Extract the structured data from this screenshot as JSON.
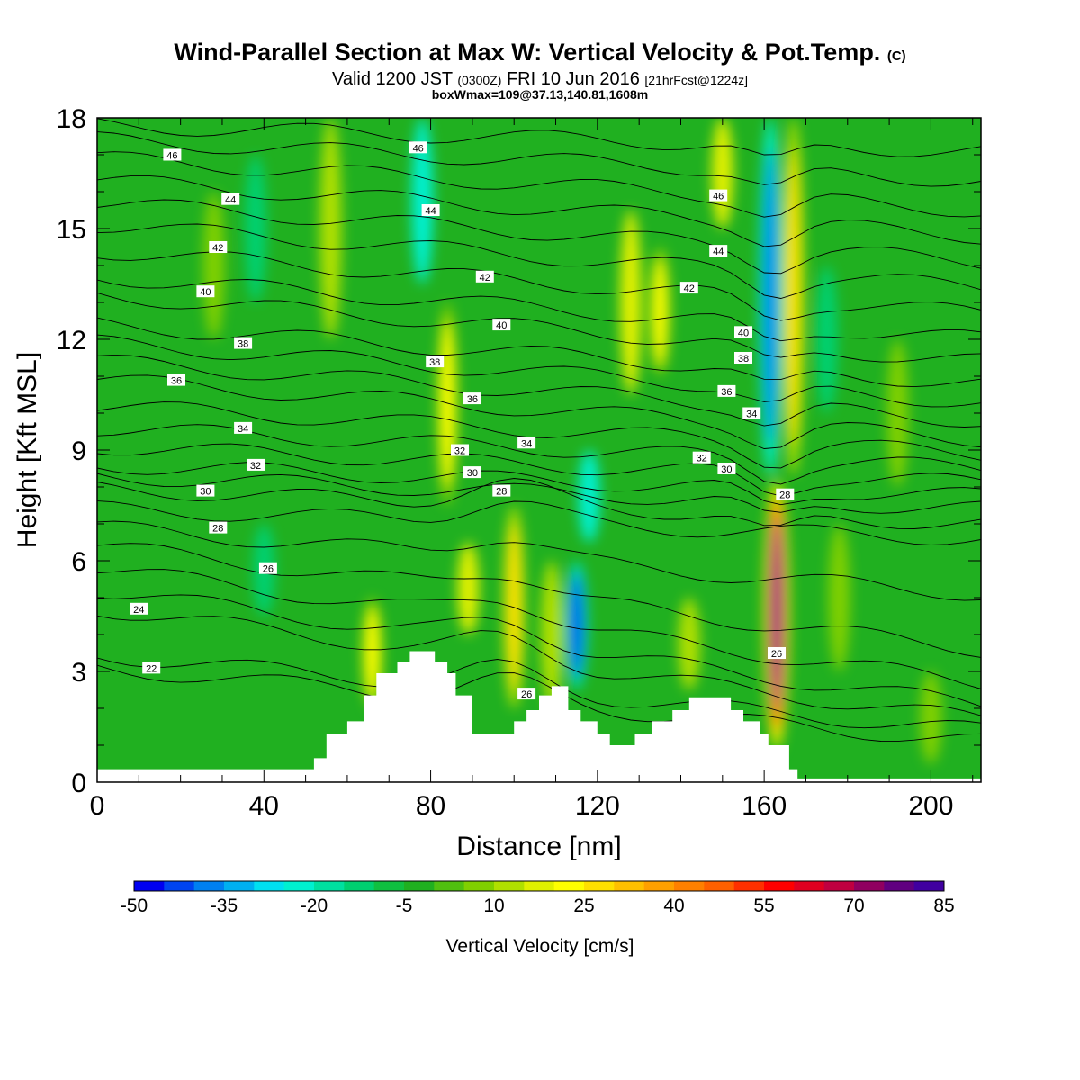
{
  "title": {
    "main": "Wind-Parallel Section at Max W: Vertical Velocity & Pot.Temp.",
    "main_mark": "(C)",
    "line2_a": "Valid 1200 JST",
    "line2_b": "(0300Z)",
    "line2_c": "FRI 10 Jun 2016",
    "line2_d": "[21hrFcst@1224z]",
    "line3": "boxWmax=109@37.13,140.81,1608m"
  },
  "chart_data": {
    "type": "heatmap",
    "xlabel": "Distance [nm]",
    "ylabel": "Height [Kft MSL]",
    "xlim": [
      0,
      212
    ],
    "ylim": [
      0,
      18
    ],
    "x_ticks": [
      0,
      40,
      80,
      120,
      160,
      200
    ],
    "y_ticks": [
      0,
      3,
      6,
      9,
      12,
      15,
      18
    ],
    "colorbar": {
      "label": "Vertical Velocity [cm/s]",
      "tick_labels": [
        "-50",
        "-35",
        "-20",
        "-5",
        "10",
        "25",
        "40",
        "55",
        "70",
        "85"
      ],
      "range": [
        -50,
        85
      ],
      "step": 5,
      "colors": [
        "#0000f0",
        "#0044f0",
        "#0080f0",
        "#00b0f0",
        "#00e0f0",
        "#00f0d0",
        "#00e0a0",
        "#00d070",
        "#10c040",
        "#20b020",
        "#50c010",
        "#80d000",
        "#b0e000",
        "#e0f000",
        "#ffff00",
        "#ffe000",
        "#ffc000",
        "#ffa000",
        "#ff8000",
        "#ff6000",
        "#ff3000",
        "#ff0000",
        "#e00020",
        "#c00040",
        "#900060",
        "#600080",
        "#4000a0"
      ]
    },
    "background_value_cm_s": -5,
    "w_features": [
      {
        "x": 163,
        "z_bottom": 0.8,
        "z_top": 8.3,
        "value": 80
      },
      {
        "x": 161.5,
        "z_bottom": 8.3,
        "z_top": 18,
        "value": -40
      },
      {
        "x": 167,
        "z_bottom": 8.3,
        "z_top": 18,
        "value": 25
      },
      {
        "x": 100,
        "z_bottom": 2.0,
        "z_top": 7.5,
        "value": 28
      },
      {
        "x": 115,
        "z_bottom": 2.5,
        "z_top": 6.0,
        "value": -45
      },
      {
        "x": 118,
        "z_bottom": 6.5,
        "z_top": 9.0,
        "value": -25
      },
      {
        "x": 84,
        "z_bottom": 7.5,
        "z_top": 13.0,
        "value": 22
      },
      {
        "x": 78,
        "z_bottom": 13.5,
        "z_top": 18,
        "value": -25
      },
      {
        "x": 56,
        "z_bottom": 12.0,
        "z_top": 18,
        "value": 12
      },
      {
        "x": 128,
        "z_bottom": 10.5,
        "z_top": 15.5,
        "value": 15
      },
      {
        "x": 135,
        "z_bottom": 11.0,
        "z_top": 14.5,
        "value": 20
      },
      {
        "x": 150,
        "z_bottom": 15.0,
        "z_top": 18,
        "value": 15
      },
      {
        "x": 28,
        "z_bottom": 12.0,
        "z_top": 16.0,
        "value": 8
      },
      {
        "x": 38,
        "z_bottom": 13.0,
        "z_top": 17.0,
        "value": -15
      },
      {
        "x": 66,
        "z_bottom": 2.0,
        "z_top": 5.0,
        "value": 22
      },
      {
        "x": 89,
        "z_bottom": 4.0,
        "z_top": 6.5,
        "value": 15
      },
      {
        "x": 109,
        "z_bottom": 2.0,
        "z_top": 6.0,
        "value": 10
      },
      {
        "x": 142,
        "z_bottom": 2.5,
        "z_top": 5.0,
        "value": 10
      },
      {
        "x": 178,
        "z_bottom": 3.0,
        "z_top": 7.0,
        "value": 5
      },
      {
        "x": 175,
        "z_bottom": 10.0,
        "z_top": 14.0,
        "value": -15
      },
      {
        "x": 192,
        "z_bottom": 8.0,
        "z_top": 12.0,
        "value": 8
      },
      {
        "x": 40,
        "z_bottom": 4.5,
        "z_top": 7.0,
        "value": -15
      },
      {
        "x": 200,
        "z_bottom": 0.5,
        "z_top": 3.0,
        "value": 5
      }
    ],
    "terrain": [
      [
        0,
        0.35
      ],
      [
        52,
        0.35
      ],
      [
        52,
        0.65
      ],
      [
        55,
        0.65
      ],
      [
        55,
        1.3
      ],
      [
        60,
        1.3
      ],
      [
        60,
        1.65
      ],
      [
        64,
        1.65
      ],
      [
        64,
        2.35
      ],
      [
        67,
        2.35
      ],
      [
        67,
        2.95
      ],
      [
        72,
        2.95
      ],
      [
        72,
        3.25
      ],
      [
        75,
        3.25
      ],
      [
        75,
        3.55
      ],
      [
        81,
        3.55
      ],
      [
        81,
        3.25
      ],
      [
        84,
        3.25
      ],
      [
        84,
        2.95
      ],
      [
        86,
        2.95
      ],
      [
        86,
        2.35
      ],
      [
        90,
        2.35
      ],
      [
        90,
        1.3
      ],
      [
        100,
        1.3
      ],
      [
        100,
        1.65
      ],
      [
        103,
        1.65
      ],
      [
        103,
        1.95
      ],
      [
        106,
        1.95
      ],
      [
        106,
        2.35
      ],
      [
        109,
        2.35
      ],
      [
        109,
        2.6
      ],
      [
        113,
        2.6
      ],
      [
        113,
        1.95
      ],
      [
        116,
        1.95
      ],
      [
        116,
        1.65
      ],
      [
        120,
        1.65
      ],
      [
        120,
        1.3
      ],
      [
        123,
        1.3
      ],
      [
        123,
        1.0
      ],
      [
        129,
        1.0
      ],
      [
        129,
        1.3
      ],
      [
        133,
        1.3
      ],
      [
        133,
        1.65
      ],
      [
        138,
        1.65
      ],
      [
        138,
        1.95
      ],
      [
        142,
        1.95
      ],
      [
        142,
        2.3
      ],
      [
        152,
        2.3
      ],
      [
        152,
        1.95
      ],
      [
        155,
        1.95
      ],
      [
        155,
        1.65
      ],
      [
        159,
        1.65
      ],
      [
        159,
        1.3
      ],
      [
        161,
        1.3
      ],
      [
        161,
        1.0
      ],
      [
        166,
        1.0
      ],
      [
        166,
        0.35
      ],
      [
        168,
        0.35
      ],
      [
        168,
        0.1
      ],
      [
        212,
        0.1
      ]
    ],
    "theta_lines": [
      {
        "theta": 22,
        "left": 3.1,
        "right": 1.1
      },
      {
        "theta": 23,
        "left": 3.45,
        "right": 1.4
      },
      {
        "theta": 24,
        "left": 4.7,
        "right": 1.7
      },
      {
        "theta": 25,
        "left": 5.2,
        "right": 2.1
      },
      {
        "theta": 26,
        "left": 5.8,
        "right": 2.7
      },
      {
        "theta": 27,
        "left": 6.4,
        "right": 3.6
      },
      {
        "theta": 28,
        "left": 6.9,
        "right": 5.1
      },
      {
        "theta": 29,
        "left": 7.4,
        "right": 6.6
      },
      {
        "theta": 30,
        "left": 7.95,
        "right": 7.0
      },
      {
        "theta": 31,
        "left": 8.3,
        "right": 7.4
      },
      {
        "theta": 32,
        "left": 8.6,
        "right": 7.75
      },
      {
        "theta": 33,
        "left": 9.1,
        "right": 8.1
      },
      {
        "theta": 34,
        "left": 9.6,
        "right": 8.5
      },
      {
        "theta": 35,
        "left": 10.2,
        "right": 8.9
      },
      {
        "theta": 36,
        "left": 10.9,
        "right": 9.3
      },
      {
        "theta": 37,
        "left": 11.4,
        "right": 9.8
      },
      {
        "theta": 38,
        "left": 11.9,
        "right": 10.3
      },
      {
        "theta": 39,
        "left": 12.4,
        "right": 10.8
      },
      {
        "theta": 40,
        "left": 13.2,
        "right": 11.4
      },
      {
        "theta": 41,
        "left": 13.7,
        "right": 12.0
      },
      {
        "theta": 42,
        "left": 14.4,
        "right": 12.7
      },
      {
        "theta": 43,
        "left": 15.1,
        "right": 13.4
      },
      {
        "theta": 44,
        "left": 15.7,
        "right": 14.1
      },
      {
        "theta": 45,
        "left": 16.3,
        "right": 14.8
      },
      {
        "theta": 46,
        "left": 16.9,
        "right": 15.5
      },
      {
        "theta": 47,
        "left": 17.4,
        "right": 16.3
      },
      {
        "theta": 48,
        "left": 17.8,
        "right": 17.1
      }
    ],
    "contour_labels": [
      {
        "text": "46",
        "x": 18,
        "z": 17.0
      },
      {
        "text": "44",
        "x": 32,
        "z": 15.8
      },
      {
        "text": "42",
        "x": 29,
        "z": 14.5
      },
      {
        "text": "40",
        "x": 26,
        "z": 13.3
      },
      {
        "text": "38",
        "x": 35,
        "z": 11.9
      },
      {
        "text": "36",
        "x": 19,
        "z": 10.9
      },
      {
        "text": "34",
        "x": 35,
        "z": 9.6
      },
      {
        "text": "32",
        "x": 38,
        "z": 8.6
      },
      {
        "text": "30",
        "x": 26,
        "z": 7.9
      },
      {
        "text": "28",
        "x": 29,
        "z": 6.9
      },
      {
        "text": "26",
        "x": 41,
        "z": 5.8
      },
      {
        "text": "24",
        "x": 10,
        "z": 4.7
      },
      {
        "text": "22",
        "x": 13,
        "z": 3.1
      },
      {
        "text": "46",
        "x": 77,
        "z": 17.2
      },
      {
        "text": "44",
        "x": 80,
        "z": 15.5
      },
      {
        "text": "42",
        "x": 93,
        "z": 13.7
      },
      {
        "text": "40",
        "x": 97,
        "z": 12.4
      },
      {
        "text": "38",
        "x": 81,
        "z": 11.4
      },
      {
        "text": "36",
        "x": 90,
        "z": 10.4
      },
      {
        "text": "32",
        "x": 87,
        "z": 9.0
      },
      {
        "text": "34",
        "x": 103,
        "z": 9.2
      },
      {
        "text": "30",
        "x": 90,
        "z": 8.4
      },
      {
        "text": "28",
        "x": 97,
        "z": 7.9
      },
      {
        "text": "26",
        "x": 103,
        "z": 2.4
      },
      {
        "text": "46",
        "x": 149,
        "z": 15.9
      },
      {
        "text": "44",
        "x": 149,
        "z": 14.4
      },
      {
        "text": "42",
        "x": 142,
        "z": 13.4
      },
      {
        "text": "40",
        "x": 155,
        "z": 12.2
      },
      {
        "text": "38",
        "x": 155,
        "z": 11.5
      },
      {
        "text": "36",
        "x": 151,
        "z": 10.6
      },
      {
        "text": "34",
        "x": 157,
        "z": 10.0
      },
      {
        "text": "32",
        "x": 145,
        "z": 8.8
      },
      {
        "text": "30",
        "x": 151,
        "z": 8.5
      },
      {
        "text": "28",
        "x": 165,
        "z": 7.8
      },
      {
        "text": "26",
        "x": 163,
        "z": 3.5
      }
    ]
  }
}
